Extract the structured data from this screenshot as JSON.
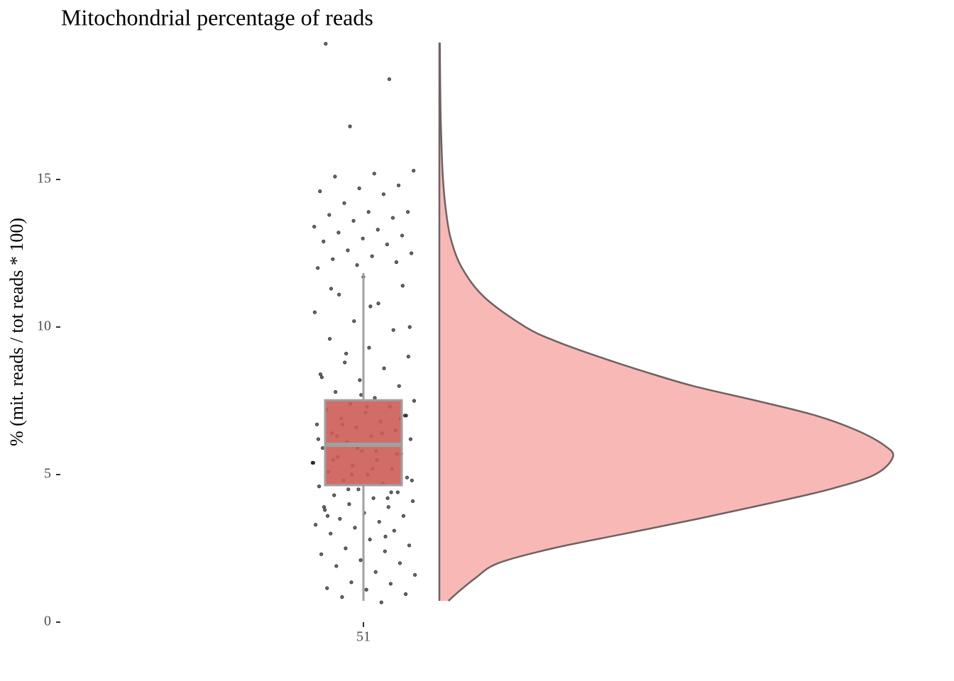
{
  "chart_data": {
    "type": "raincloud",
    "title": "Mitochondrial percentage of reads",
    "y_label": "% (mit. reads / tot reads * 100)",
    "categories": [
      "51"
    ],
    "ylim": [
      0,
      19.64
    ],
    "yticks": [
      0,
      5,
      10,
      15
    ],
    "box": {
      "whisker_low": 0.72,
      "q1": 4.64,
      "median": 6.01,
      "q3": 7.52,
      "whisker_high": 11.83
    },
    "box_color": "#cd5c57",
    "violin_color": "#f8b9b6",
    "point_color": "#000000",
    "density": {
      "y": [
        0.72,
        1,
        1.5,
        2,
        2.5,
        3,
        3.5,
        4,
        4.5,
        5,
        5.6,
        6,
        6.5,
        7,
        7.5,
        8,
        8.5,
        9,
        9.5,
        10,
        11,
        12,
        13,
        14,
        15,
        16,
        17,
        18,
        19.64
      ],
      "width": [
        0.02,
        0.04,
        0.08,
        0.13,
        0.25,
        0.41,
        0.57,
        0.72,
        0.86,
        0.96,
        1.0,
        0.98,
        0.92,
        0.83,
        0.7,
        0.56,
        0.45,
        0.35,
        0.26,
        0.19,
        0.1,
        0.05,
        0.025,
        0.014,
        0.008,
        0.005,
        0.003,
        0.002,
        0.001
      ]
    },
    "points": [
      19.6,
      18.4,
      16.8,
      15.3,
      15.2,
      15.1,
      14.8,
      14.7,
      14.6,
      14.5,
      14.2,
      13.9,
      13.9,
      13.8,
      13.7,
      13.6,
      13.4,
      13.3,
      13.2,
      13.1,
      13.0,
      12.9,
      12.8,
      12.6,
      12.5,
      12.4,
      12.3,
      12.2,
      12.1,
      12.0,
      0.67,
      0.85,
      0.95,
      1.1,
      1.15,
      1.3,
      1.35,
      1.6,
      1.7,
      1.9,
      2.0,
      2.1,
      2.3,
      2.4,
      2.5,
      2.6,
      2.8,
      3.0,
      3.1,
      3.2,
      3.3,
      3.4,
      3.5,
      3.6,
      3.7,
      3.8,
      3.9,
      4.0,
      4.1,
      4.2,
      4.3,
      4.4,
      4.5,
      4.6,
      4.7,
      4.8,
      4.9,
      5.0,
      5.1,
      5.2,
      5.3,
      5.4,
      5.5,
      5.6,
      5.7,
      5.8,
      5.9,
      6.0,
      6.1,
      6.2,
      6.3,
      6.4,
      6.5,
      6.6,
      6.7,
      6.8,
      6.9,
      7.0,
      7.1,
      7.2,
      7.3,
      7.4,
      7.5,
      7.6,
      7.8,
      8.0,
      8.2,
      8.4,
      8.6,
      8.8,
      9.0,
      9.3,
      9.6,
      9.9,
      10.2,
      10.5,
      10.8,
      11.1,
      11.4,
      11.7,
      3.9,
      4.2,
      4.5,
      4.8,
      5.2,
      5.5,
      5.7,
      5.9,
      6.2,
      6.4,
      6.7,
      7.0,
      7.3,
      3.6,
      4.4,
      5.0,
      5.4,
      5.8,
      6.3,
      6.9,
      7.7,
      8.3,
      2.9,
      9.1,
      10.0,
      10.7,
      11.3
    ]
  }
}
